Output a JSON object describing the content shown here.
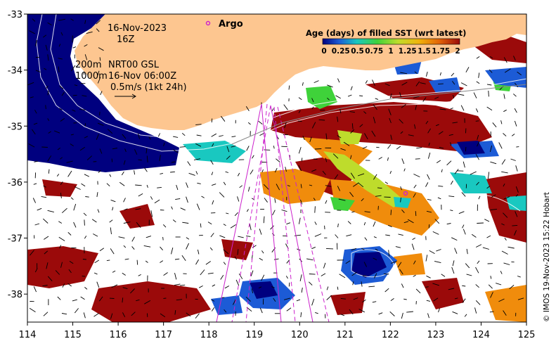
{
  "map": {
    "date_line": "16-Nov-2023",
    "hour_line": "16Z",
    "contour_label_1": "200m",
    "contour_label_2": "1000m",
    "product_line": "NRT00 GSL",
    "product_time": "16-Nov 06:00Z",
    "vector_scale": "0.5m/s (1kt 24h)",
    "argo_label": "Argo",
    "colorbar": {
      "title": "Age (days) of filled SST (wrt latest)",
      "ticks": [
        "0",
        "0.25",
        "0.5",
        "0.75",
        "1",
        "1.25",
        "1.5",
        "1.75",
        "2"
      ],
      "tick_values": [
        0,
        0.25,
        0.5,
        0.75,
        1,
        1.25,
        1.5,
        1.75,
        2
      ],
      "range": [
        0,
        2
      ]
    },
    "credit": "© IMOS 19-Nov-2023 15:22 Hobart",
    "x_ticks": [
      114,
      115,
      116,
      117,
      118,
      119,
      120,
      121,
      122,
      123,
      124,
      125
    ],
    "y_ticks": [
      -33,
      -34,
      -35,
      -36,
      -37,
      -38
    ],
    "lon_range": [
      114,
      125
    ],
    "lat_range": [
      -38.5,
      -33
    ],
    "colors": {
      "land": "#fdc690",
      "navy": "#00007f",
      "blue": "#1c5bd6",
      "cyan": "#19c8c0",
      "green": "#3fd23a",
      "yellow_green": "#bedc2c",
      "orange": "#f08c0c",
      "dark_orange": "#e36408",
      "dark_red": "#9b0a0a",
      "track": "#cc22cc"
    }
  }
}
